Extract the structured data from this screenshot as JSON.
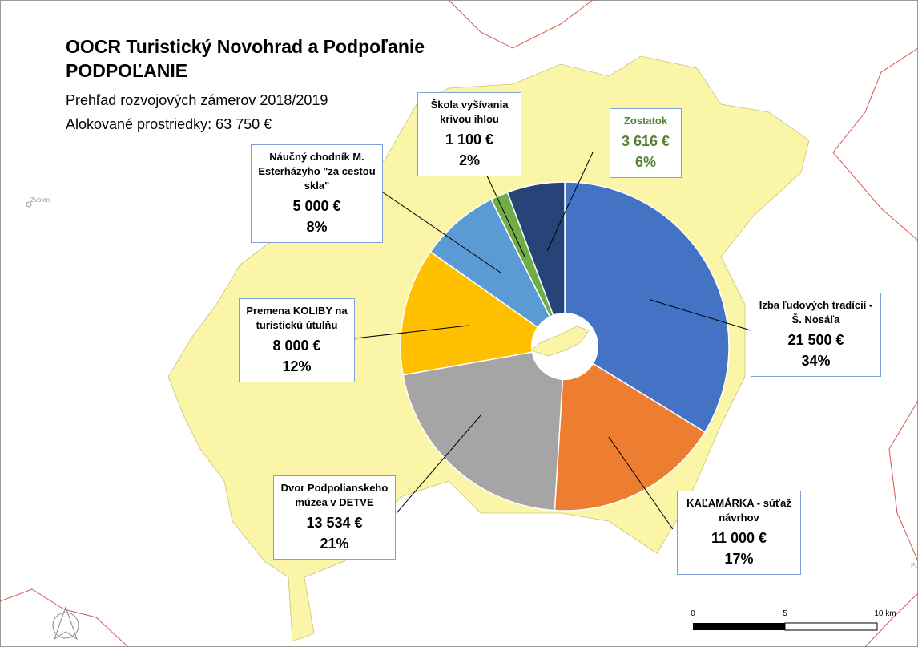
{
  "map": {
    "title": "OOCR Turistický Novohrad a Podpoľanie",
    "subtitle": "PODPOĽANIE",
    "description": "Prehľad rozvojových zámerov 2018/2019",
    "allocation": "Alokované prostriedky: 63 750 €",
    "places": [
      "Zvolen",
      "Po"
    ],
    "scale_labels": [
      "0",
      "5",
      "10 km"
    ]
  },
  "chart_data": {
    "type": "pie",
    "categories": [
      "Izba ľudových tradícií - Š. Nosáľa",
      "KAĽAMÁRKA - súťaž návrhov",
      "Dvor Podpolianskeho múzea v DETVE",
      "Premena KOLIBY na turistickú útulňu",
      "Náučný chodník M. Esterházyho \"za cestou skla\"",
      "Škola vyšívania krivou ihlou",
      "Zostatok"
    ],
    "values": [
      21500,
      11000,
      13534,
      8000,
      5000,
      1100,
      3616
    ],
    "value_labels": [
      "21 500 €",
      "11 000 €",
      "13 534 €",
      "8 000 €",
      "5 000 €",
      "1 100 €",
      "3 616 €"
    ],
    "percent_labels": [
      "34%",
      "17%",
      "21%",
      "12%",
      "8%",
      "2%",
      "6%"
    ],
    "colors": [
      "#4472c4",
      "#ed7d31",
      "#a5a5a5",
      "#ffc000",
      "#5b9bd5",
      "#70ad47",
      "#264478"
    ],
    "label_colors": [
      "#000000",
      "#000000",
      "#000000",
      "#000000",
      "#000000",
      "#000000",
      "#548235"
    ]
  }
}
